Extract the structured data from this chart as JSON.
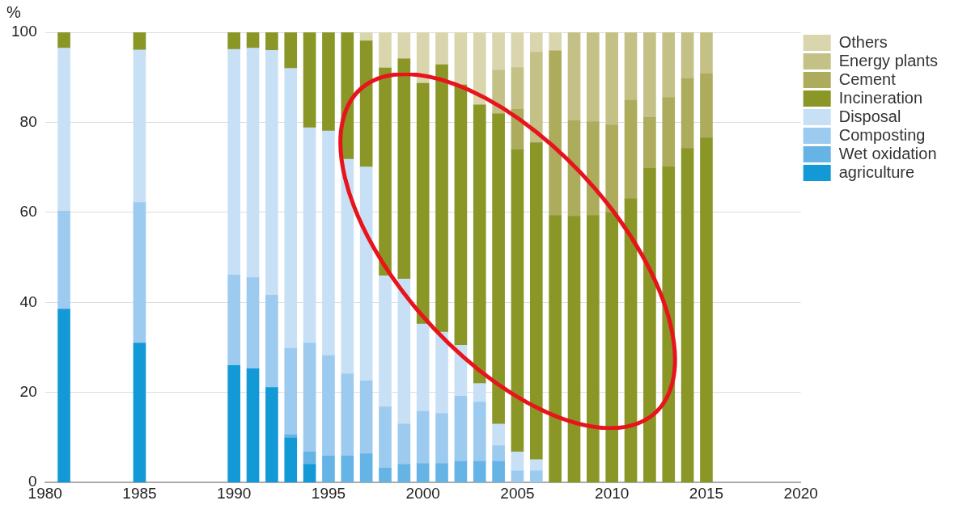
{
  "chart_data": {
    "type": "bar",
    "stacked": true,
    "ylabel": "%",
    "x": [
      1981,
      1985,
      1990,
      1991,
      1992,
      1993,
      1994,
      1995,
      1996,
      1997,
      1998,
      1999,
      2000,
      2001,
      2002,
      2003,
      2004,
      2005,
      2006,
      2007,
      2008,
      2009,
      2010,
      2011,
      2012,
      2013,
      2014,
      2015
    ],
    "series": [
      {
        "name": "agriculture",
        "color": "#139ad6",
        "values": [
          38.5,
          31,
          26,
          25.3,
          21.1,
          9.9,
          4,
          null,
          null,
          null,
          null,
          null,
          null,
          null,
          null,
          null,
          null,
          null,
          null,
          null,
          null,
          null,
          null,
          null,
          null,
          null,
          null,
          null
        ]
      },
      {
        "name": "Wet oxidation",
        "color": "#66b4e6",
        "values": [
          null,
          null,
          null,
          null,
          null,
          0.7,
          2.8,
          5.9,
          5.9,
          6.4,
          3.2,
          4,
          4.2,
          4.2,
          4.7,
          4.7,
          4.7,
          null,
          null,
          null,
          null,
          null,
          null,
          null,
          null,
          null,
          null,
          null
        ]
      },
      {
        "name": "Composting",
        "color": "#9ccbef",
        "values": [
          21.8,
          31.2,
          20.1,
          20.2,
          20.5,
          19.2,
          24.2,
          22.3,
          18.2,
          16.2,
          13.6,
          9,
          11.6,
          11.1,
          14.5,
          13.2,
          3.5,
          2.6,
          2.6,
          null,
          null,
          null,
          null,
          null,
          null,
          null,
          null,
          null
        ]
      },
      {
        "name": "Disposal",
        "color": "#c8e0f6",
        "values": [
          36.2,
          33.9,
          50.1,
          51,
          54.4,
          62.2,
          47.8,
          49.9,
          47.7,
          47.5,
          29.1,
          32.2,
          19.4,
          18.1,
          11.3,
          4.1,
          4.8,
          4.2,
          2.5,
          null,
          null,
          null,
          null,
          null,
          null,
          null,
          null,
          null
        ]
      },
      {
        "name": "Incineration",
        "color": "#8a9626",
        "values": [
          3.5,
          3.9,
          3.9,
          3.5,
          4,
          8,
          21.2,
          21.9,
          28.2,
          28,
          46.2,
          48.9,
          53.5,
          59.4,
          57.8,
          61.9,
          68.9,
          67.1,
          70.4,
          59.3,
          59.1,
          59.3,
          59.9,
          63,
          69.8,
          70.1,
          74.2,
          76.5
        ]
      },
      {
        "name": "Cement",
        "color": "#adab5c",
        "values": [
          null,
          null,
          null,
          null,
          null,
          null,
          null,
          null,
          null,
          null,
          null,
          null,
          null,
          null,
          null,
          null,
          null,
          9,
          null,
          36.6,
          21.3,
          20.8,
          19.5,
          21.9,
          11.3,
          15.4,
          15.5,
          14.3
        ]
      },
      {
        "name": "Energy plants",
        "color": "#c4c187",
        "values": [
          null,
          null,
          null,
          null,
          null,
          null,
          null,
          null,
          null,
          null,
          null,
          null,
          null,
          null,
          null,
          null,
          9.7,
          9.3,
          20.1,
          null,
          19.6,
          19.9,
          20.6,
          15.1,
          18.9,
          14.5,
          10.3,
          9.2
        ]
      },
      {
        "name": "Others",
        "color": "#d9d6ae",
        "values": [
          null,
          null,
          null,
          null,
          null,
          null,
          null,
          null,
          null,
          1.9,
          7.9,
          5.9,
          11.3,
          7.2,
          11.7,
          16.1,
          8.4,
          7.8,
          4.4,
          4.1,
          null,
          null,
          null,
          null,
          null,
          null,
          null,
          null
        ]
      }
    ],
    "xlim": [
      1980,
      2020
    ],
    "xticks": [
      1980,
      1985,
      1990,
      1995,
      2000,
      2005,
      2010,
      2015,
      2020
    ],
    "ylim": [
      0,
      100
    ],
    "yticks": [
      0,
      20,
      40,
      60,
      80,
      100
    ],
    "grid": "y",
    "legend": "right"
  }
}
